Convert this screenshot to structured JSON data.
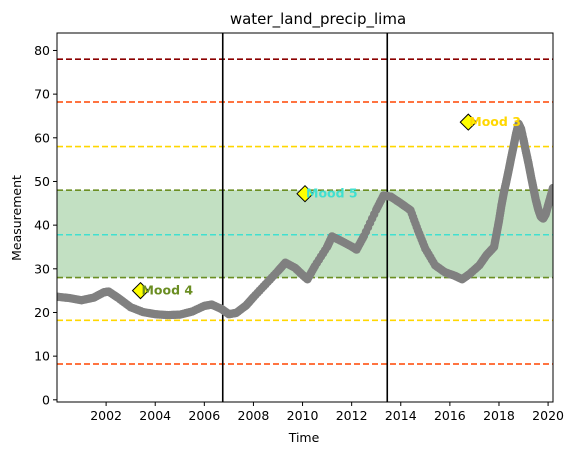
{
  "chart_data": {
    "type": "scatter",
    "title": "water_land_precip_lima",
    "xlabel": "Time",
    "ylabel": "Measurement",
    "xlim": [
      2000.0,
      2020.2
    ],
    "ylim": [
      -0.5,
      84
    ],
    "x_ticks": [
      2002,
      2004,
      2006,
      2008,
      2010,
      2012,
      2014,
      2016,
      2018,
      2020
    ],
    "y_ticks": [
      0,
      10,
      20,
      30,
      40,
      50,
      60,
      70,
      80
    ],
    "grid": false,
    "series": [
      {
        "color": "#808080",
        "points": [
          [
            2000.0,
            23.6
          ],
          [
            2000.5,
            23.3
          ],
          [
            2001.0,
            22.8
          ],
          [
            2001.5,
            23.4
          ],
          [
            2001.9,
            24.6
          ],
          [
            2002.1,
            24.8
          ],
          [
            2002.5,
            23.3
          ],
          [
            2003.0,
            21.2
          ],
          [
            2003.5,
            20.1
          ],
          [
            2004.0,
            19.6
          ],
          [
            2004.5,
            19.4
          ],
          [
            2005.0,
            19.5
          ],
          [
            2005.5,
            20.2
          ],
          [
            2006.0,
            21.5
          ],
          [
            2006.3,
            21.8
          ],
          [
            2006.7,
            20.8
          ],
          [
            2007.0,
            19.6
          ],
          [
            2007.3,
            19.9
          ],
          [
            2007.7,
            21.6
          ],
          [
            2008.0,
            23.5
          ],
          [
            2008.5,
            26.5
          ],
          [
            2009.0,
            29.5
          ],
          [
            2009.3,
            31.4
          ],
          [
            2009.7,
            30.2
          ],
          [
            2010.0,
            28.6
          ],
          [
            2010.2,
            27.6
          ],
          [
            2010.5,
            30.6
          ],
          [
            2011.0,
            35.0
          ],
          [
            2011.2,
            37.4
          ],
          [
            2011.6,
            36.3
          ],
          [
            2012.0,
            35.1
          ],
          [
            2012.2,
            34.4
          ],
          [
            2012.5,
            37.5
          ],
          [
            2013.0,
            43.5
          ],
          [
            2013.3,
            46.8
          ],
          [
            2013.6,
            46.5
          ],
          [
            2014.0,
            45.0
          ],
          [
            2014.4,
            43.4
          ],
          [
            2014.7,
            38.8
          ],
          [
            2015.0,
            34.6
          ],
          [
            2015.4,
            30.8
          ],
          [
            2015.8,
            29.2
          ],
          [
            2016.2,
            28.4
          ],
          [
            2016.5,
            27.6
          ],
          [
            2016.8,
            28.8
          ],
          [
            2017.2,
            30.8
          ],
          [
            2017.5,
            33.2
          ],
          [
            2017.8,
            35.0
          ],
          [
            2017.9,
            38.0
          ],
          [
            2018.0,
            41.0
          ],
          [
            2018.1,
            44.5
          ],
          [
            2018.2,
            47.5
          ],
          [
            2018.3,
            50.0
          ],
          [
            2018.4,
            52.7
          ],
          [
            2018.5,
            55.5
          ],
          [
            2018.6,
            58.2
          ],
          [
            2018.7,
            61.0
          ],
          [
            2018.8,
            63.2
          ],
          [
            2018.9,
            62.0
          ],
          [
            2019.0,
            59.5
          ],
          [
            2019.1,
            56.8
          ],
          [
            2019.2,
            54.2
          ],
          [
            2019.3,
            51.3
          ],
          [
            2019.4,
            48.5
          ],
          [
            2019.5,
            45.8
          ],
          [
            2019.6,
            43.6
          ],
          [
            2019.7,
            42.0
          ],
          [
            2019.8,
            41.5
          ],
          [
            2019.9,
            42.5
          ],
          [
            2020.0,
            44.5
          ],
          [
            2020.1,
            46.5
          ],
          [
            2020.2,
            48.5
          ]
        ]
      }
    ],
    "shaded_band": {
      "y0": 28.0,
      "y1": 48.0,
      "color": "#c2e0c2"
    },
    "hlines": [
      {
        "y": 78.0,
        "color": "#8b0000"
      },
      {
        "y": 68.2,
        "color": "#ff4500"
      },
      {
        "y": 58.0,
        "color": "#ffd700"
      },
      {
        "y": 48.0,
        "color": "#6b8e23"
      },
      {
        "y": 37.8,
        "color": "#40e0d0"
      },
      {
        "y": 28.0,
        "color": "#6b8e23"
      },
      {
        "y": 18.2,
        "color": "#ffd700"
      },
      {
        "y": 8.2,
        "color": "#ff4500"
      }
    ],
    "vlines": [
      {
        "x": 2006.75,
        "color": "#000000"
      },
      {
        "x": 2013.45,
        "color": "#000000"
      }
    ],
    "annotations": [
      {
        "label": "Mood 4",
        "x": 2003.4,
        "y": 25.0,
        "color": "#6b8e23"
      },
      {
        "label": "Mood 5",
        "x": 2010.1,
        "y": 47.2,
        "color": "#40e0d0"
      },
      {
        "label": "Mood 3",
        "x": 2016.75,
        "y": 63.6,
        "color": "#ffd700"
      }
    ]
  }
}
